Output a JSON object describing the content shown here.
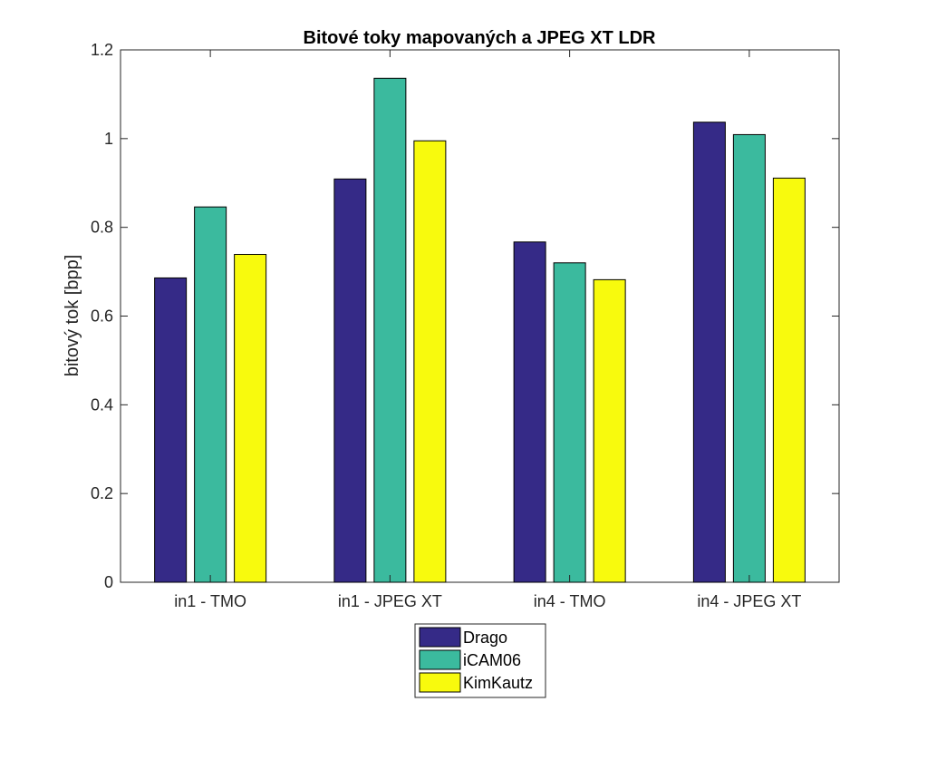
{
  "chart_data": {
    "type": "bar",
    "title": "Bitové toky mapovaných a JPEG XT LDR",
    "xlabel": "",
    "ylabel": "bitový tok [bpp]",
    "ylim": [
      0,
      1.2
    ],
    "yticks": [
      0,
      0.2,
      0.4,
      0.6,
      0.8,
      1,
      1.2
    ],
    "ytick_labels": [
      "0",
      "0.2",
      "0.4",
      "0.6",
      "0.8",
      "1",
      "1.2"
    ],
    "categories": [
      "in1 - TMO",
      "in1 - JPEG XT",
      "in4 - TMO",
      "in4 - JPEG XT"
    ],
    "series": [
      {
        "name": "Drago",
        "color": "#352a87",
        "values": [
          0.686,
          0.909,
          0.767,
          1.037
        ]
      },
      {
        "name": "iCAM06",
        "color": "#3bba9e",
        "values": [
          0.846,
          1.136,
          0.72,
          1.009
        ]
      },
      {
        "name": "KimKautz",
        "color": "#f8fa0d",
        "values": [
          0.739,
          0.995,
          0.682,
          0.911
        ]
      }
    ],
    "grid": false,
    "legend_position": "bottom-center"
  }
}
